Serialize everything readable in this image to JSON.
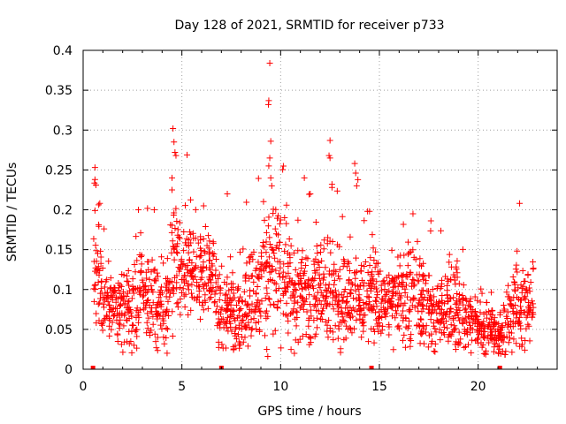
{
  "chart_data": {
    "type": "scatter",
    "title": "Day 128 of 2021, SRMTID for receiver p733",
    "xlabel": "GPS time / hours",
    "ylabel": "SRMTID / TECUs",
    "xlim": [
      0,
      24
    ],
    "ylim": [
      0,
      0.4
    ],
    "x_ticks": [
      0,
      5,
      10,
      15,
      20
    ],
    "y_ticks": [
      0,
      0.05,
      0.1,
      0.15,
      0.2,
      0.25,
      0.3,
      0.35,
      0.4
    ],
    "x_tick_labels": [
      "0",
      "5",
      "10",
      "15",
      "20"
    ],
    "y_tick_labels": [
      "0",
      "0.05",
      "0.1",
      "0.15",
      "0.2",
      "0.25",
      "0.3",
      "0.35",
      "0.4"
    ],
    "grid": true,
    "marker": "+",
    "color": "#ff0000",
    "gap_markers_x": [
      0.5,
      7.0,
      14.6,
      21.1
    ],
    "series": [
      {
        "name": "SRMTID",
        "envelope_hours": [
          0.5,
          0.7,
          1.0,
          1.5,
          2.0,
          2.5,
          2.9,
          3.3,
          3.8,
          4.3,
          4.6,
          5.0,
          5.5,
          6.0,
          6.5,
          7.0,
          7.5,
          8.0,
          8.5,
          9.0,
          9.4,
          9.8,
          10.3,
          10.8,
          11.3,
          11.8,
          12.3,
          12.8,
          13.3,
          13.8,
          14.3,
          14.7,
          15.2,
          15.7,
          16.2,
          16.7,
          17.2,
          17.7,
          18.2,
          18.7,
          19.2,
          19.7,
          20.2,
          20.7,
          21.1,
          21.5,
          21.9,
          22.3,
          22.8
        ],
        "mean_tecu": [
          0.09,
          0.13,
          0.09,
          0.08,
          0.08,
          0.07,
          0.11,
          0.08,
          0.09,
          0.08,
          0.13,
          0.13,
          0.12,
          0.12,
          0.12,
          0.07,
          0.07,
          0.07,
          0.09,
          0.1,
          0.12,
          0.13,
          0.11,
          0.1,
          0.1,
          0.1,
          0.11,
          0.09,
          0.09,
          0.09,
          0.09,
          0.09,
          0.08,
          0.09,
          0.09,
          0.1,
          0.08,
          0.07,
          0.07,
          0.08,
          0.07,
          0.06,
          0.05,
          0.05,
          0.04,
          0.07,
          0.08,
          0.08,
          0.08
        ],
        "spread_tecu": [
          0.04,
          0.05,
          0.03,
          0.02,
          0.03,
          0.03,
          0.04,
          0.03,
          0.04,
          0.04,
          0.05,
          0.04,
          0.04,
          0.04,
          0.03,
          0.03,
          0.03,
          0.03,
          0.04,
          0.04,
          0.05,
          0.05,
          0.04,
          0.04,
          0.04,
          0.04,
          0.04,
          0.04,
          0.04,
          0.04,
          0.04,
          0.04,
          0.03,
          0.03,
          0.04,
          0.04,
          0.03,
          0.03,
          0.03,
          0.04,
          0.03,
          0.02,
          0.02,
          0.02,
          0.02,
          0.03,
          0.04,
          0.03,
          0.03
        ],
        "peaks": [
          {
            "x": 0.6,
            "y": 0.253
          },
          {
            "x": 0.6,
            "y": 0.238
          },
          {
            "x": 0.65,
            "y": 0.231
          },
          {
            "x": 0.6,
            "y": 0.199
          },
          {
            "x": 2.8,
            "y": 0.2
          },
          {
            "x": 3.6,
            "y": 0.2
          },
          {
            "x": 4.55,
            "y": 0.302
          },
          {
            "x": 4.6,
            "y": 0.285
          },
          {
            "x": 4.65,
            "y": 0.272
          },
          {
            "x": 4.7,
            "y": 0.268
          },
          {
            "x": 4.5,
            "y": 0.24
          },
          {
            "x": 4.5,
            "y": 0.225
          },
          {
            "x": 6.1,
            "y": 0.205
          },
          {
            "x": 7.3,
            "y": 0.22
          },
          {
            "x": 9.45,
            "y": 0.384
          },
          {
            "x": 9.4,
            "y": 0.337
          },
          {
            "x": 9.38,
            "y": 0.332
          },
          {
            "x": 9.5,
            "y": 0.286
          },
          {
            "x": 9.45,
            "y": 0.265
          },
          {
            "x": 9.4,
            "y": 0.255
          },
          {
            "x": 9.5,
            "y": 0.24
          },
          {
            "x": 9.55,
            "y": 0.23
          },
          {
            "x": 10.2,
            "y": 0.19
          },
          {
            "x": 11.2,
            "y": 0.24
          },
          {
            "x": 11.5,
            "y": 0.22
          },
          {
            "x": 12.5,
            "y": 0.287
          },
          {
            "x": 12.45,
            "y": 0.268
          },
          {
            "x": 12.5,
            "y": 0.265
          },
          {
            "x": 12.6,
            "y": 0.232
          },
          {
            "x": 12.6,
            "y": 0.228
          },
          {
            "x": 13.75,
            "y": 0.258
          },
          {
            "x": 13.8,
            "y": 0.246
          },
          {
            "x": 13.85,
            "y": 0.23
          },
          {
            "x": 14.5,
            "y": 0.198
          },
          {
            "x": 14.4,
            "y": 0.198
          },
          {
            "x": 16.7,
            "y": 0.195
          },
          {
            "x": 22.1,
            "y": 0.208
          },
          {
            "x": 9.35,
            "y": 0.016
          },
          {
            "x": 9.3,
            "y": 0.025
          },
          {
            "x": 20.8,
            "y": 0.022
          }
        ]
      }
    ]
  }
}
